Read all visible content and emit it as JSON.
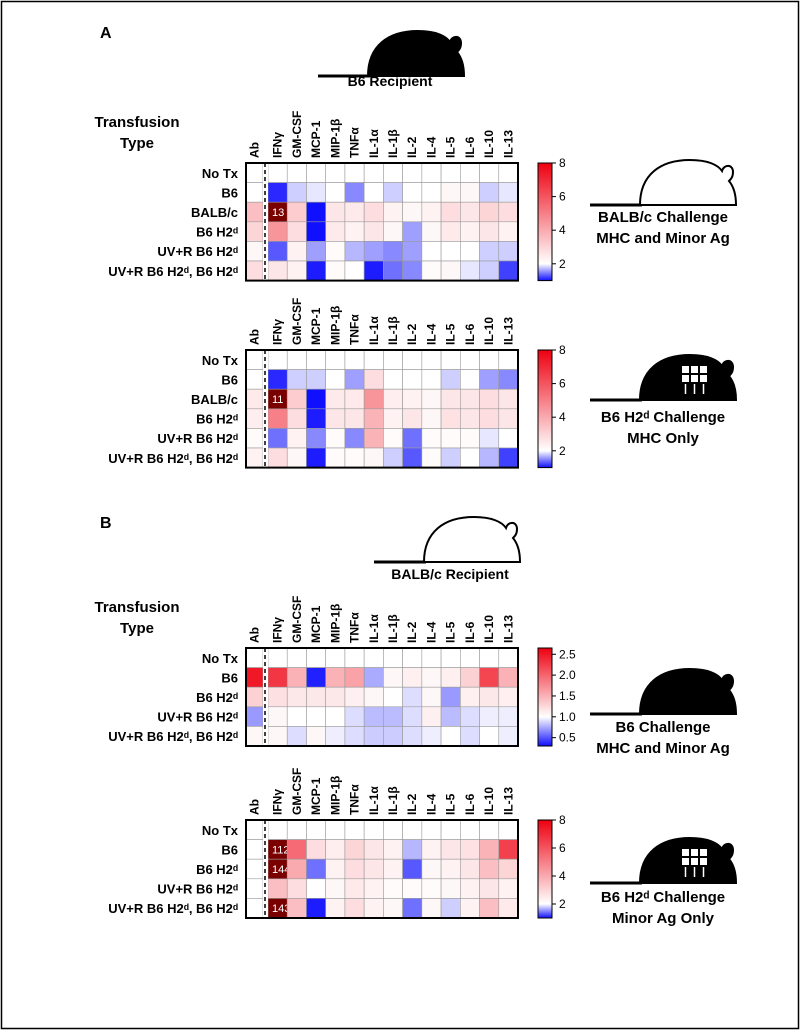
{
  "panels": [
    {
      "label": "A",
      "recipient": "B6 Recipient",
      "row_header": [
        "Transfusion",
        "Type"
      ]
    },
    {
      "label": "B",
      "recipient": "BALB/c Recipient",
      "row_header": [
        "Transfusion",
        "Type"
      ]
    }
  ],
  "chart_data": [
    {
      "type": "heatmap",
      "x": [
        "Ab",
        "IFNγ",
        "GM-CSF",
        "MCP-1",
        "MIP-1β",
        "TNFα",
        "IL-1α",
        "IL-1β",
        "IL-2",
        "IL-4",
        "IL-5",
        "IL-6",
        "IL-10",
        "IL-13"
      ],
      "y": [
        "No Tx",
        "B6",
        "BALB/c",
        "B6 H2ᵈ",
        "UV+R B6 H2ᵈ",
        "UV+R B6 H2ᵈ, B6 H2ᵈ"
      ],
      "values": [
        [
          2,
          2,
          2,
          2,
          2,
          2,
          2,
          2,
          2,
          2,
          2,
          2,
          2,
          2
        ],
        [
          2,
          1.1,
          1.8,
          1.9,
          2,
          1.5,
          2,
          1.8,
          2,
          2,
          2.2,
          2.2,
          1.8,
          1.9
        ],
        [
          3.5,
          13,
          3.2,
          1.0,
          2.6,
          2.5,
          2.8,
          2.3,
          2.2,
          2.3,
          2.8,
          2.6,
          3,
          2.8
        ],
        [
          3,
          4.5,
          2.8,
          1.0,
          2.5,
          2.3,
          2.6,
          2.2,
          1.6,
          2.2,
          2.5,
          2.3,
          2.6,
          2.3
        ],
        [
          2.2,
          1.3,
          2.3,
          1.6,
          2.1,
          1.7,
          1.6,
          1.5,
          1.6,
          2,
          2,
          2,
          1.8,
          1.8
        ],
        [
          2.8,
          2.6,
          2.3,
          1.05,
          2.1,
          2,
          1.05,
          1.4,
          1.5,
          2.1,
          2.2,
          1.9,
          1.8,
          1.2
        ]
      ],
      "zlim": [
        1,
        8
      ],
      "zticks": [
        2,
        4,
        6,
        8
      ],
      "zmid": 2,
      "colors": {
        "low": "#1010ff",
        "mid": "#ffffff",
        "high": "#ee0010",
        "over": "#7a0000"
      },
      "caption": [
        "BALB/c Challenge",
        "MHC and Minor Ag"
      ]
    },
    {
      "type": "heatmap",
      "x": [
        "Ab",
        "IFNγ",
        "GM-CSF",
        "MCP-1",
        "MIP-1β",
        "TNFα",
        "IL-1α",
        "IL-1β",
        "IL-2",
        "IL-4",
        "IL-5",
        "IL-6",
        "IL-10",
        "IL-13"
      ],
      "y": [
        "No Tx",
        "B6",
        "BALB/c",
        "B6 H2ᵈ",
        "UV+R B6 H2ᵈ",
        "UV+R B6 H2ᵈ, B6 H2ᵈ"
      ],
      "values": [
        [
          2,
          2,
          2,
          2,
          2,
          2,
          2,
          2,
          2,
          2,
          2,
          2,
          2,
          2
        ],
        [
          2,
          1.1,
          1.8,
          1.8,
          2,
          1.6,
          2.8,
          2,
          2,
          2,
          1.8,
          2,
          1.6,
          1.5
        ],
        [
          2.5,
          11,
          3.2,
          1.0,
          2.5,
          2.5,
          4.5,
          2.4,
          2.3,
          2.2,
          2.6,
          2.6,
          2.8,
          2.6
        ],
        [
          2.4,
          5,
          2.8,
          1.05,
          2.6,
          2.6,
          3.8,
          2.3,
          2.6,
          2.2,
          2.7,
          2.6,
          2.8,
          2.6
        ],
        [
          2.1,
          1.4,
          2.3,
          1.5,
          2.1,
          1.5,
          3.8,
          2.1,
          1.4,
          2.1,
          2.1,
          2.1,
          1.9,
          2
        ],
        [
          2.3,
          2.8,
          2.2,
          1.05,
          2.1,
          2.1,
          2.2,
          1.8,
          1.3,
          2.1,
          1.8,
          2,
          1.7,
          1.2
        ]
      ],
      "zlim": [
        1,
        8
      ],
      "zticks": [
        2,
        4,
        6,
        8
      ],
      "zmid": 2,
      "colors": {
        "low": "#1010ff",
        "mid": "#ffffff",
        "high": "#ee0010",
        "over": "#7a0000"
      },
      "caption": [
        "B6 H2ᵈ Challenge",
        "MHC Only"
      ]
    },
    {
      "type": "heatmap",
      "x": [
        "Ab",
        "IFNγ",
        "GM-CSF",
        "MCP-1",
        "MIP-1β",
        "TNFα",
        "IL-1α",
        "IL-1β",
        "IL-2",
        "IL-4",
        "IL-5",
        "IL-6",
        "IL-10",
        "IL-13"
      ],
      "y": [
        "No Tx",
        "B6",
        "B6 H2ᵈ",
        "UV+R B6 H2ᵈ",
        "UV+R B6 H2ᵈ, B6 H2ᵈ"
      ],
      "values": [
        [
          1,
          1,
          1,
          1,
          1,
          1,
          1,
          1,
          1,
          1,
          1,
          1,
          1,
          1
        ],
        [
          2.5,
          2.3,
          1.5,
          0.35,
          1.5,
          1.6,
          0.75,
          1.05,
          1.1,
          1.05,
          1.1,
          1.3,
          2.2,
          1.5
        ],
        [
          1.3,
          1.2,
          1.15,
          1.15,
          1.15,
          1.1,
          1.05,
          1.0,
          0.9,
          1.05,
          0.7,
          1.1,
          1.15,
          1.1
        ],
        [
          0.7,
          1.05,
          1.0,
          1.0,
          1.0,
          0.9,
          0.8,
          0.8,
          0.9,
          1.1,
          0.8,
          0.9,
          0.95,
          0.95
        ],
        [
          1.05,
          1.05,
          0.9,
          1.05,
          0.95,
          0.9,
          0.85,
          0.85,
          0.9,
          0.95,
          1.0,
          0.9,
          1.0,
          0.95
        ]
      ],
      "zlim": [
        0.3,
        2.65
      ],
      "zticks": [
        2.5,
        {
          "value": 2,
          "label": "2.0"
        },
        1.5,
        {
          "value": 1,
          "label": "1.0"
        },
        0.5
      ],
      "zmid": 1,
      "colors": {
        "low": "#1010ff",
        "mid": "#ffffff",
        "high": "#ee0010",
        "over": "#7a0000"
      },
      "caption": [
        "B6 Challenge",
        "MHC and Minor Ag"
      ]
    },
    {
      "type": "heatmap",
      "x": [
        "Ab",
        "IFNγ",
        "GM-CSF",
        "MCP-1",
        "MIP-1β",
        "TNFα",
        "IL-1α",
        "IL-1β",
        "IL-2",
        "IL-4",
        "IL-5",
        "IL-6",
        "IL-10",
        "IL-13"
      ],
      "y": [
        "No Tx",
        "B6",
        "B6 H2ᵈ",
        "UV+R B6 H2ᵈ",
        "UV+R B6 H2ᵈ, B6 H2ᵈ"
      ],
      "values": [
        [
          2,
          2,
          2,
          2,
          2,
          2,
          2,
          2,
          2,
          2,
          2,
          2,
          2,
          2
        ],
        [
          2,
          112,
          5.5,
          2.8,
          2.4,
          3,
          2.6,
          2.3,
          1.7,
          2.3,
          2.6,
          2.7,
          3.8,
          6.5
        ],
        [
          2,
          144,
          4,
          1.4,
          2.3,
          2.8,
          2.6,
          2.3,
          1.3,
          2.2,
          2.3,
          2.6,
          3.5,
          3
        ],
        [
          2,
          3.5,
          2.8,
          2,
          2.2,
          2.5,
          2.3,
          2.1,
          2.1,
          2.1,
          2.2,
          2.3,
          2.6,
          2.3
        ],
        [
          2,
          143,
          3.5,
          1.05,
          2.3,
          2.8,
          2.3,
          2.2,
          1.4,
          2.2,
          1.8,
          2.3,
          3.5,
          2.5
        ]
      ],
      "zlim": [
        1,
        8
      ],
      "zticks": [
        2,
        4,
        6,
        8
      ],
      "zmid": 2,
      "colors": {
        "low": "#1010ff",
        "mid": "#ffffff",
        "high": "#ee0010",
        "over": "#7a0000"
      },
      "caption": [
        "B6 H2ᵈ Challenge",
        "Minor Ag Only"
      ]
    }
  ]
}
